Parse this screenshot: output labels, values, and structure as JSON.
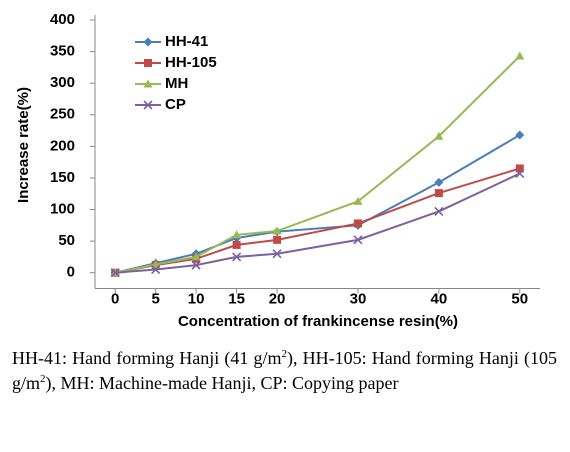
{
  "chart_data": {
    "type": "line",
    "y_label": "Increase rate(%)",
    "x_label": "Concentration of frankincense resin(%)",
    "x": [
      0,
      5,
      10,
      15,
      20,
      30,
      40,
      50
    ],
    "xlim": [
      -2.5,
      52.5
    ],
    "xticks": [
      0,
      5,
      10,
      15,
      20,
      30,
      40,
      50
    ],
    "ylim": [
      -25,
      400
    ],
    "yticks": [
      0,
      50,
      100,
      150,
      200,
      250,
      300,
      350,
      400
    ],
    "legend": "upper left",
    "series": [
      {
        "name": "HH-41",
        "color": "#4a7ebb",
        "marker": "diamond",
        "values": [
          0,
          15,
          30,
          55,
          65,
          75,
          143,
          218
        ]
      },
      {
        "name": "HH-105",
        "color": "#be4b48",
        "marker": "square",
        "values": [
          0,
          12,
          22,
          44,
          52,
          78,
          126,
          165
        ]
      },
      {
        "name": "MH",
        "color": "#98b954",
        "marker": "triangle",
        "values": [
          0,
          13,
          25,
          60,
          66,
          113,
          216,
          343
        ]
      },
      {
        "name": "CP",
        "color": "#7d60a0",
        "marker": "x",
        "values": [
          0,
          5,
          12,
          25,
          30,
          52,
          97,
          157
        ]
      }
    ]
  },
  "caption": {
    "parts": [
      "HH-41: Hand forming Hanji (41 g/m",
      "2",
      "), HH-105: Hand forming Hanji (105 g/m",
      "2",
      "), MH: Machine-made Hanji, CP: Copying paper"
    ]
  }
}
